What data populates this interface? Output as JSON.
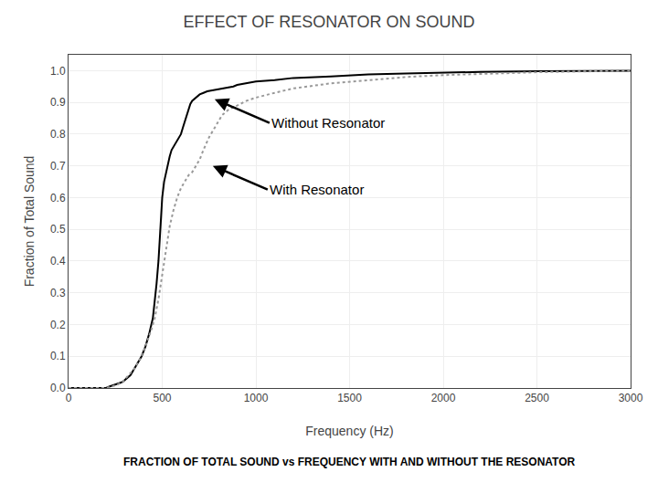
{
  "chart_data": {
    "type": "line",
    "title": "EFFECT OF RESONATOR ON SOUND",
    "subtitle": "FRACTION OF TOTAL SOUND vs FREQUENCY WITH AND WITHOUT THE RESONATOR",
    "xlabel": "Frequency (Hz)",
    "ylabel": "Fraction of Total Sound",
    "xlim": [
      0,
      3000
    ],
    "ylim": [
      0,
      1.05
    ],
    "xticks": [
      0,
      500,
      1000,
      1500,
      2000,
      2500,
      3000
    ],
    "yticks": [
      {
        "value": 0,
        "label": "0.0"
      },
      0.1,
      0.2,
      0.3,
      0.4,
      0.5,
      0.6,
      0.7,
      0.8,
      0.9,
      {
        "value": 1,
        "label": "1.0"
      }
    ],
    "grid": true,
    "series": [
      {
        "color": "#000000",
        "line_style": "solid",
        "x": [
          0,
          50,
          100,
          150,
          200,
          220,
          250,
          270,
          290,
          310,
          330,
          350,
          370,
          390,
          410,
          430,
          450,
          460,
          470,
          480,
          490,
          500,
          510,
          520,
          530,
          540,
          550,
          560,
          570,
          580,
          590,
          600,
          610,
          620,
          630,
          640,
          650,
          660,
          670,
          680,
          690,
          700,
          720,
          740,
          760,
          780,
          800,
          820,
          840,
          860,
          880,
          900,
          950,
          1000,
          1100,
          1200,
          1400,
          1600,
          1800,
          2000,
          2200,
          2500,
          2700,
          3000
        ],
        "values": [
          0.0,
          0.0,
          0.0,
          0.0,
          0.0,
          0.005,
          0.01,
          0.015,
          0.02,
          0.03,
          0.04,
          0.06,
          0.08,
          0.1,
          0.13,
          0.17,
          0.22,
          0.27,
          0.33,
          0.4,
          0.5,
          0.6,
          0.65,
          0.68,
          0.71,
          0.73,
          0.75,
          0.76,
          0.77,
          0.78,
          0.79,
          0.8,
          0.82,
          0.84,
          0.86,
          0.88,
          0.895,
          0.905,
          0.91,
          0.915,
          0.92,
          0.925,
          0.93,
          0.935,
          0.937,
          0.939,
          0.941,
          0.943,
          0.945,
          0.947,
          0.95,
          0.955,
          0.96,
          0.966,
          0.97,
          0.977,
          0.982,
          0.988,
          0.991,
          0.994,
          0.996,
          0.998,
          0.999,
          1.0
        ]
      },
      {
        "color": "#999999",
        "line_style": "dotted",
        "x": [
          0,
          50,
          100,
          150,
          200,
          230,
          260,
          290,
          320,
          350,
          380,
          410,
          440,
          460,
          480,
          500,
          520,
          540,
          560,
          580,
          600,
          620,
          640,
          660,
          680,
          700,
          720,
          750,
          780,
          820,
          860,
          900,
          950,
          1000,
          1100,
          1200,
          1400,
          1600,
          1800,
          2000,
          2200,
          2500,
          2700,
          3000
        ],
        "values": [
          0.0,
          0.0,
          0.0,
          0.0,
          0.0,
          0.005,
          0.01,
          0.02,
          0.04,
          0.06,
          0.09,
          0.13,
          0.18,
          0.22,
          0.28,
          0.36,
          0.44,
          0.51,
          0.56,
          0.6,
          0.63,
          0.65,
          0.67,
          0.68,
          0.7,
          0.72,
          0.75,
          0.79,
          0.82,
          0.86,
          0.88,
          0.89,
          0.905,
          0.915,
          0.93,
          0.944,
          0.96,
          0.97,
          0.98,
          0.986,
          0.99,
          0.995,
          0.997,
          1.0
        ]
      }
    ],
    "annotations": [
      {
        "text": "Without Resonator",
        "x": 780,
        "y": 0.91
      },
      {
        "text": "With Resonator",
        "x": 770,
        "y": 0.7
      }
    ]
  }
}
